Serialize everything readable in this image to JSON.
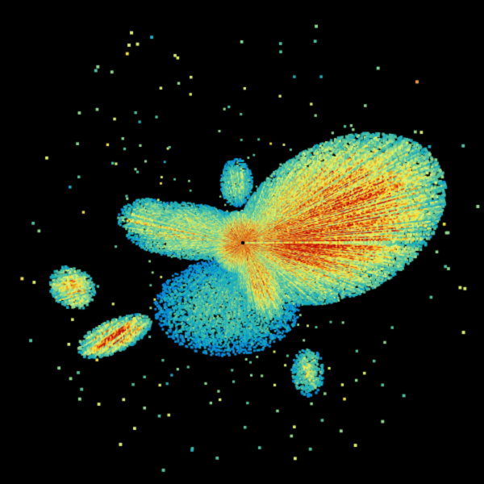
{
  "image": {
    "kind": "radar reflectivity sweep",
    "background_color": "#000000",
    "palette": [
      "#0a5fc8",
      "#0a8fd8",
      "#1ab0c0",
      "#50c0a0",
      "#90d890",
      "#d8f070",
      "#f0e040",
      "#f0a020",
      "#e05010",
      "#c01010"
    ]
  }
}
